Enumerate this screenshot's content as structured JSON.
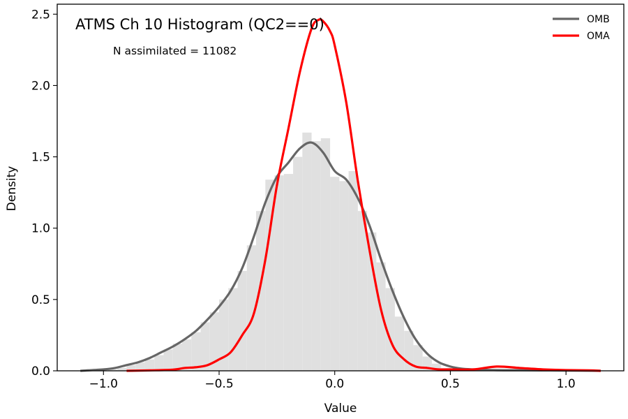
{
  "chart_data": {
    "type": "histogram+line",
    "title": "ATMS Ch 10 Histogram (QC2==0)",
    "annotation": "N assimilated = 11082",
    "xlabel": "Value",
    "ylabel": "Density",
    "xlim": [
      -1.2,
      1.25
    ],
    "ylim": [
      0,
      2.57
    ],
    "xticks": [
      -1.0,
      -0.5,
      0.0,
      0.5,
      1.0
    ],
    "xtick_labels": [
      "−1.0",
      "−0.5",
      "0.0",
      "0.5",
      "1.0"
    ],
    "yticks": [
      0.0,
      0.5,
      1.0,
      1.5,
      2.0,
      2.5
    ],
    "ytick_labels": [
      "0.0",
      "0.5",
      "1.0",
      "1.5",
      "2.0",
      "2.5"
    ],
    "grid": false,
    "legend_position": "top-right",
    "histogram": {
      "color": "#e0e0e0",
      "bin_edges": [
        -0.98,
        -0.94,
        -0.9,
        -0.86,
        -0.82,
        -0.78,
        -0.74,
        -0.7,
        -0.66,
        -0.62,
        -0.58,
        -0.54,
        -0.5,
        -0.46,
        -0.42,
        -0.38,
        -0.34,
        -0.3,
        -0.26,
        -0.22,
        -0.18,
        -0.14,
        -0.1,
        -0.06,
        -0.02,
        0.02,
        0.06,
        0.1,
        0.14,
        0.18,
        0.22,
        0.26,
        0.3,
        0.34,
        0.38,
        0.42,
        0.46,
        0.5,
        0.54,
        0.58,
        0.62,
        0.66
      ],
      "density": [
        0.01,
        0.02,
        0.04,
        0.06,
        0.08,
        0.11,
        0.15,
        0.19,
        0.22,
        0.27,
        0.34,
        0.41,
        0.5,
        0.58,
        0.7,
        0.88,
        1.12,
        1.34,
        1.37,
        1.38,
        1.5,
        1.67,
        1.61,
        1.63,
        1.36,
        1.33,
        1.4,
        1.12,
        0.97,
        0.76,
        0.58,
        0.38,
        0.28,
        0.18,
        0.1,
        0.05,
        0.02,
        0.01,
        0.01,
        0.005,
        0.003
      ]
    },
    "series": [
      {
        "name": "OMB",
        "color": "#666666",
        "x": [
          -1.1,
          -1.0,
          -0.95,
          -0.9,
          -0.85,
          -0.8,
          -0.75,
          -0.7,
          -0.65,
          -0.6,
          -0.55,
          -0.5,
          -0.45,
          -0.4,
          -0.35,
          -0.3,
          -0.25,
          -0.2,
          -0.15,
          -0.1,
          -0.05,
          0.0,
          0.05,
          0.1,
          0.15,
          0.2,
          0.25,
          0.3,
          0.35,
          0.4,
          0.45,
          0.5,
          0.55,
          0.6,
          0.7,
          0.8,
          0.9,
          1.0,
          1.15
        ],
        "y": [
          0.0,
          0.01,
          0.02,
          0.04,
          0.06,
          0.09,
          0.13,
          0.17,
          0.22,
          0.28,
          0.36,
          0.45,
          0.56,
          0.72,
          0.94,
          1.18,
          1.36,
          1.46,
          1.56,
          1.6,
          1.53,
          1.4,
          1.34,
          1.21,
          1.02,
          0.78,
          0.56,
          0.37,
          0.22,
          0.12,
          0.06,
          0.03,
          0.015,
          0.01,
          0.005,
          0.004,
          0.003,
          0.002,
          0.0
        ]
      },
      {
        "name": "OMA",
        "color": "#ff0000",
        "x": [
          -0.9,
          -0.8,
          -0.7,
          -0.65,
          -0.6,
          -0.55,
          -0.5,
          -0.45,
          -0.4,
          -0.35,
          -0.3,
          -0.25,
          -0.2,
          -0.15,
          -0.1,
          -0.07,
          -0.05,
          -0.02,
          0.0,
          0.05,
          0.1,
          0.15,
          0.2,
          0.25,
          0.3,
          0.35,
          0.4,
          0.45,
          0.5,
          0.6,
          0.7,
          0.8,
          0.9,
          1.0,
          1.1,
          1.15
        ],
        "y": [
          0.0,
          0.003,
          0.008,
          0.02,
          0.025,
          0.04,
          0.08,
          0.13,
          0.25,
          0.4,
          0.78,
          1.3,
          1.7,
          2.1,
          2.4,
          2.46,
          2.45,
          2.38,
          2.28,
          1.88,
          1.33,
          0.85,
          0.43,
          0.18,
          0.08,
          0.03,
          0.02,
          0.01,
          0.01,
          0.01,
          0.03,
          0.02,
          0.01,
          0.005,
          0.003,
          0.0
        ]
      }
    ]
  }
}
